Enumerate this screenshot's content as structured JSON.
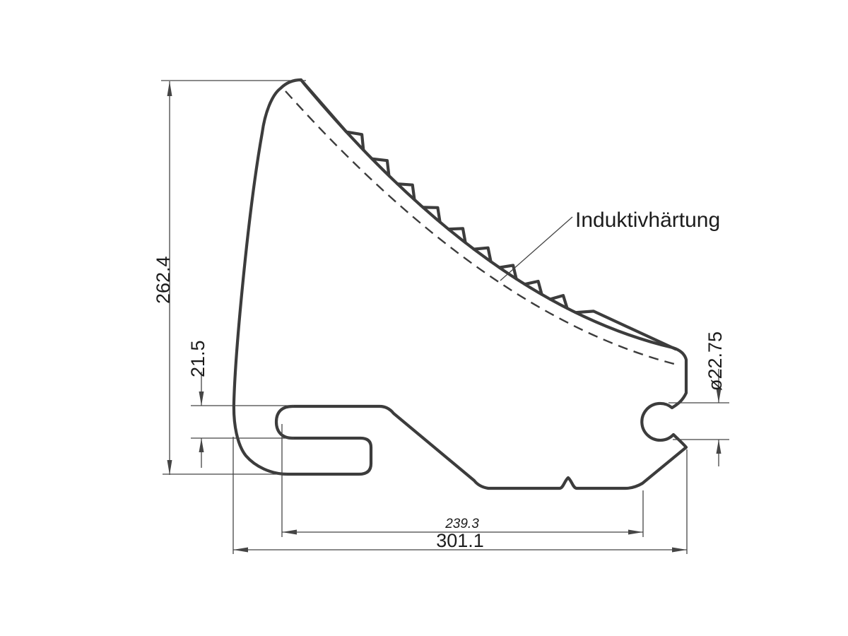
{
  "drawing": {
    "annotation": "Induktivhärtung",
    "dimensions": {
      "overall_height": "262.4",
      "slot_height": "21.5",
      "bar_diameter": "ø22.75",
      "base_length": "239.3",
      "overall_length": "301.1"
    },
    "colors": {
      "outline": "#3c3c3c",
      "dimension": "#454545",
      "text": "#1c1c1c",
      "background": "#ffffff"
    }
  }
}
